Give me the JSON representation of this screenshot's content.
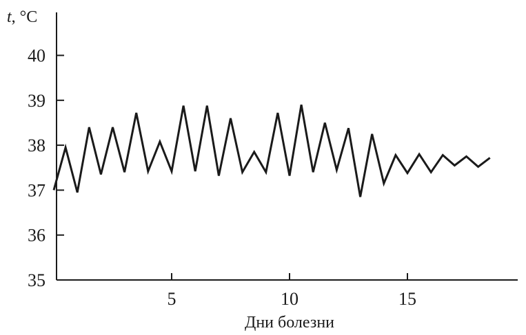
{
  "chart_data": {
    "type": "line",
    "title": "",
    "xlabel": "Дни болезни",
    "ylabel": {
      "var": "t",
      "unit": ", °C"
    },
    "xlim": [
      0,
      19.5
    ],
    "ylim": [
      35,
      41
    ],
    "xticks": [
      5,
      10,
      15
    ],
    "yticks": [
      35,
      36,
      37,
      38,
      39,
      40
    ],
    "grid": false,
    "series": [
      {
        "color": "#1a1a1a",
        "x": [
          0.0,
          0.5,
          1.0,
          1.5,
          2.0,
          2.5,
          3.0,
          3.5,
          4.0,
          4.5,
          5.0,
          5.5,
          6.0,
          6.5,
          7.0,
          7.5,
          8.0,
          8.5,
          9.0,
          9.5,
          10.0,
          10.5,
          11.0,
          11.5,
          12.0,
          12.5,
          13.0,
          13.5,
          14.0,
          14.5,
          15.0,
          15.5,
          16.0,
          16.5,
          17.0,
          17.5,
          18.0,
          18.5
        ],
        "values": [
          37.0,
          37.95,
          36.95,
          38.4,
          37.35,
          38.4,
          37.4,
          38.72,
          37.42,
          38.08,
          37.42,
          38.88,
          37.42,
          38.88,
          37.32,
          38.6,
          37.4,
          37.85,
          37.4,
          38.72,
          37.32,
          38.9,
          37.4,
          38.5,
          37.45,
          38.38,
          36.85,
          38.25,
          37.15,
          37.78,
          37.38,
          37.8,
          37.4,
          37.78,
          37.55,
          37.75,
          37.52,
          37.72
        ]
      }
    ]
  }
}
